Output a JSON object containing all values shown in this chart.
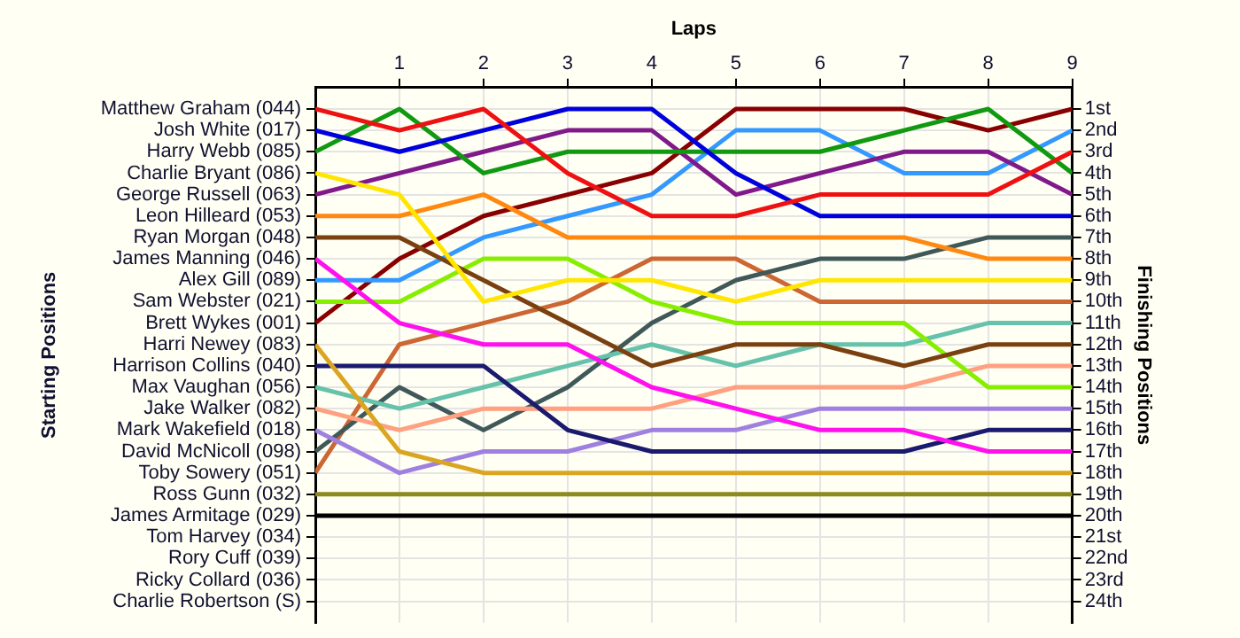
{
  "chart_data": {
    "type": "line",
    "xlabel": "Laps",
    "ylabel": "Finishing Positions",
    "x": [
      0,
      1,
      2,
      3,
      4,
      5,
      6,
      7,
      8,
      9
    ],
    "xlim": [
      0,
      9
    ],
    "xticks": [
      1,
      2,
      3,
      4,
      5,
      6,
      7,
      8,
      9
    ],
    "ylim": [
      25,
      0
    ],
    "yticks": [
      {
        "value": 1,
        "label": "1st"
      },
      {
        "value": 2,
        "label": "2nd"
      },
      {
        "value": 3,
        "label": "3rd"
      },
      {
        "value": 4,
        "label": "4th"
      },
      {
        "value": 5,
        "label": "5th"
      },
      {
        "value": 6,
        "label": "6th"
      },
      {
        "value": 7,
        "label": "7th"
      },
      {
        "value": 8,
        "label": "8th"
      },
      {
        "value": 9,
        "label": "9th"
      },
      {
        "value": 10,
        "label": "10th"
      },
      {
        "value": 11,
        "label": "11th"
      },
      {
        "value": 12,
        "label": "12th"
      },
      {
        "value": 13,
        "label": "13th"
      },
      {
        "value": 14,
        "label": "14th"
      },
      {
        "value": 15,
        "label": "15th"
      },
      {
        "value": 16,
        "label": "16th"
      },
      {
        "value": 17,
        "label": "17th"
      },
      {
        "value": 18,
        "label": "18th"
      },
      {
        "value": 19,
        "label": "19th"
      },
      {
        "value": 20,
        "label": "20th"
      },
      {
        "value": 21,
        "label": "21st"
      },
      {
        "value": 22,
        "label": "22nd"
      },
      {
        "value": 23,
        "label": "23rd"
      },
      {
        "value": 24,
        "label": "24th"
      }
    ],
    "annotations": [
      "Starting Positions",
      "Matthew Graham (044)",
      "Josh White (017)",
      "Harry Webb (085)",
      "Charlie Bryant (086)",
      "George Russell (063)",
      "Leon Hilleard (053)",
      "Ryan Morgan (048)",
      "James Manning (046)",
      "Alex Gill (089)",
      "Sam Webster (021)",
      "Brett Wykes (001)",
      "Harri Newey (083)",
      "Harrison Collins (040)",
      "Max Vaughan (056)",
      "Jake Walker (082)",
      "Mark Wakefield (018)",
      "David McNicoll (098)",
      "Toby Sowery (051)",
      "Ross Gunn (032)",
      "James Armitage (029)",
      "Tom Harvey (034)",
      "Rory Cuff (039)",
      "Ricky Collard (036)",
      "Charlie Robertson (S)"
    ],
    "grid": true,
    "legend": false,
    "marker": "none",
    "line_style": "solid",
    "series": [
      {
        "color": "#ee1111",
        "values": [
          1,
          2,
          1,
          4,
          6,
          6,
          5,
          5,
          5,
          3
        ]
      },
      {
        "color": "#0000dd",
        "values": [
          2,
          3,
          2,
          1,
          1,
          4,
          6,
          6,
          6,
          6
        ]
      },
      {
        "color": "#119911",
        "values": [
          3,
          1,
          4,
          3,
          3,
          3,
          3,
          2,
          1,
          4
        ]
      },
      {
        "color": "#ffe600",
        "values": [
          4,
          5,
          10,
          9,
          9,
          10,
          9,
          9,
          9,
          9
        ]
      },
      {
        "color": "#801a8a",
        "values": [
          5,
          4,
          3,
          2,
          2,
          5,
          4,
          3,
          3,
          5
        ]
      },
      {
        "color": "#ff8811",
        "values": [
          6,
          6,
          5,
          7,
          7,
          7,
          7,
          7,
          8,
          8
        ]
      },
      {
        "color": "#7a4010",
        "values": [
          7,
          7,
          9,
          11,
          13,
          12,
          12,
          13,
          12,
          12
        ]
      },
      {
        "color": "#ff11ee",
        "values": [
          8,
          11,
          12,
          12,
          14,
          15,
          16,
          16,
          17,
          17
        ]
      },
      {
        "color": "#3399ff",
        "values": [
          9,
          9,
          7,
          6,
          5,
          2,
          2,
          4,
          4,
          2
        ]
      },
      {
        "color": "#88ee00",
        "values": [
          10,
          10,
          8,
          8,
          10,
          11,
          11,
          11,
          14,
          14
        ]
      },
      {
        "color": "#880000",
        "values": [
          11,
          8,
          6,
          5,
          4,
          1,
          1,
          1,
          2,
          1
        ]
      },
      {
        "color": "#daa520",
        "values": [
          12,
          17,
          18,
          18,
          18,
          18,
          18,
          18,
          18,
          18
        ]
      },
      {
        "color": "#1a1a6e",
        "values": [
          13,
          13,
          13,
          16,
          17,
          17,
          17,
          17,
          16,
          16
        ]
      },
      {
        "color": "#66c2aa",
        "values": [
          14,
          15,
          14,
          13,
          12,
          13,
          12,
          12,
          11,
          11
        ]
      },
      {
        "color": "#ffa080",
        "values": [
          15,
          16,
          15,
          15,
          15,
          14,
          14,
          14,
          13,
          13
        ]
      },
      {
        "color": "#9f80e0",
        "values": [
          16,
          18,
          17,
          17,
          16,
          16,
          15,
          15,
          15,
          15
        ]
      },
      {
        "color": "#405858",
        "values": [
          17,
          14,
          16,
          14,
          11,
          9,
          8,
          8,
          7,
          7
        ]
      },
      {
        "color": "#cc6633",
        "values": [
          18,
          12,
          11,
          10,
          8,
          8,
          10,
          10,
          10,
          10
        ]
      },
      {
        "color": "#8b8b20",
        "values": [
          19,
          19,
          19,
          19,
          19,
          19,
          19,
          19,
          19,
          19
        ]
      },
      {
        "color": "#000000",
        "values": [
          20,
          20,
          20,
          20,
          20,
          20,
          20,
          20,
          20,
          20
        ]
      }
    ]
  }
}
